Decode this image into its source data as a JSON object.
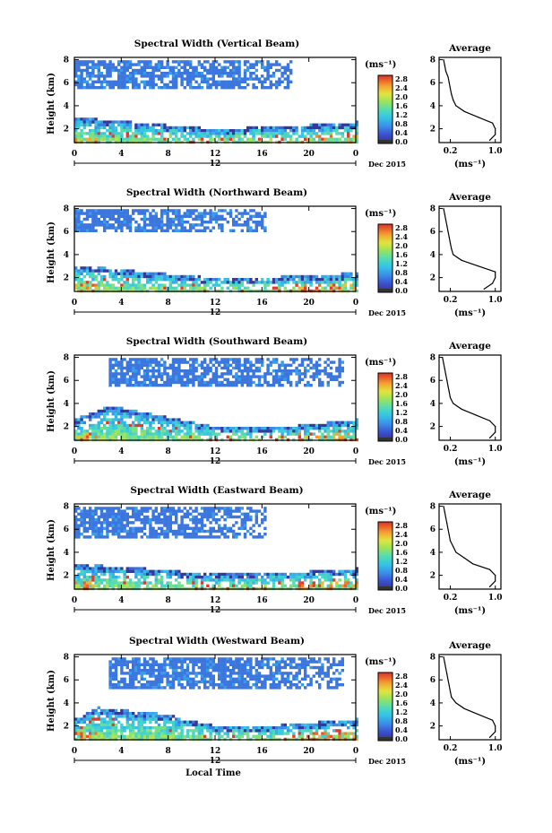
{
  "figure": {
    "x_label": "Local Time",
    "date_label": "Dec 2015",
    "x_ticks": [
      "0",
      "4",
      "8",
      "12",
      "16",
      "20",
      "0"
    ],
    "x_mid_label": "12",
    "y_label": "Height (km)",
    "y_ticks": [
      "2",
      "4",
      "6",
      "8"
    ],
    "cbar_unit": "(ms⁻¹)",
    "cbar_ticks": [
      "0.0",
      "0.4",
      "0.8",
      "1.2",
      "1.6",
      "2.0",
      "2.4",
      "2.8"
    ],
    "avg_title": "Average",
    "avg_y_ticks": [
      "2",
      "4",
      "6",
      "8"
    ],
    "avg_x_ticks": [
      "0.2",
      "1.0"
    ],
    "avg_x_unit": "(ms⁻¹)"
  },
  "chart_data": [
    {
      "type": "heatmap",
      "title": "Spectral Width (Vertical Beam)",
      "xlabel": "Local Time",
      "ylabel": "Height (km)",
      "xlim": [
        0,
        24
      ],
      "ylim": [
        0.8,
        8.2
      ],
      "colorbar": {
        "unit": "ms^-1",
        "range": [
          0,
          2.8
        ]
      },
      "upper_cloud": {
        "height_km": [
          5.5,
          8.0
        ],
        "time_h": [
          0,
          18.5
        ],
        "typical_width": 0.2
      },
      "lower_layer_top_km": [
        [
          0,
          3.0
        ],
        [
          6,
          2.5
        ],
        [
          12,
          2.0
        ],
        [
          18,
          2.2
        ],
        [
          24,
          2.6
        ]
      ],
      "average_profile": {
        "title": "Average",
        "xlim": [
          0,
          1.1
        ],
        "height_km": [
          1.0,
          1.5,
          2.0,
          2.5,
          3.0,
          3.5,
          4.0,
          4.5,
          5.0,
          5.5,
          6.0,
          6.5,
          7.0,
          7.5,
          8.0
        ],
        "width_ms": [
          0.9,
          1.0,
          1.0,
          0.95,
          0.7,
          0.45,
          0.3,
          0.25,
          0.22,
          0.2,
          0.18,
          0.16,
          0.12,
          0.1,
          0.08
        ]
      }
    },
    {
      "type": "heatmap",
      "title": "Spectral Width (Northward Beam)",
      "xlabel": "Local Time",
      "ylabel": "Height (km)",
      "xlim": [
        0,
        24
      ],
      "ylim": [
        0.8,
        8.2
      ],
      "colorbar": {
        "unit": "ms^-1",
        "range": [
          0,
          2.8
        ]
      },
      "upper_cloud": {
        "height_km": [
          6.0,
          8.0
        ],
        "time_h": [
          0,
          16.5
        ],
        "typical_width": 0.2
      },
      "lower_layer_top_km": [
        [
          0,
          3.1
        ],
        [
          6,
          2.5
        ],
        [
          12,
          2.0
        ],
        [
          18,
          2.1
        ],
        [
          24,
          2.4
        ]
      ],
      "average_profile": {
        "title": "Average",
        "xlim": [
          0,
          1.1
        ],
        "height_km": [
          1.0,
          1.5,
          2.0,
          2.5,
          3.0,
          3.5,
          4.0,
          4.5,
          5.0,
          5.5,
          6.0,
          6.5,
          7.0,
          7.5,
          8.0
        ],
        "width_ms": [
          0.8,
          0.95,
          1.0,
          1.0,
          0.7,
          0.4,
          0.25,
          0.22,
          0.2,
          0.18,
          0.16,
          0.14,
          0.12,
          0.1,
          0.08
        ]
      }
    },
    {
      "type": "heatmap",
      "title": "Spectral Width (Southward Beam)",
      "xlabel": "Local Time",
      "ylabel": "Height (km)",
      "xlim": [
        0,
        24
      ],
      "ylim": [
        0.8,
        8.2
      ],
      "colorbar": {
        "unit": "ms^-1",
        "range": [
          0,
          2.8
        ]
      },
      "upper_cloud": {
        "height_km": [
          5.5,
          8.0
        ],
        "time_h": [
          3,
          23
        ],
        "typical_width": 0.2
      },
      "lower_layer_top_km": [
        [
          0,
          2.6
        ],
        [
          3,
          3.8
        ],
        [
          6,
          3.2
        ],
        [
          12,
          2.0
        ],
        [
          18,
          2.0
        ],
        [
          24,
          2.6
        ]
      ],
      "average_profile": {
        "title": "Average",
        "xlim": [
          0,
          1.1
        ],
        "height_km": [
          1.0,
          1.5,
          2.0,
          2.5,
          3.0,
          3.5,
          4.0,
          4.5,
          5.0,
          5.5,
          6.0,
          6.5,
          7.0,
          7.5,
          8.0
        ],
        "width_ms": [
          0.9,
          1.0,
          1.0,
          0.9,
          0.65,
          0.4,
          0.25,
          0.2,
          0.18,
          0.16,
          0.14,
          0.12,
          0.1,
          0.08,
          0.06
        ]
      }
    },
    {
      "type": "heatmap",
      "title": "Spectral Width (Eastward Beam)",
      "xlabel": "Local Time",
      "ylabel": "Height (km)",
      "xlim": [
        0,
        24
      ],
      "ylim": [
        0.8,
        8.2
      ],
      "colorbar": {
        "unit": "ms^-1",
        "range": [
          0,
          2.8
        ]
      },
      "upper_cloud": {
        "height_km": [
          5.3,
          8.0
        ],
        "time_h": [
          0,
          16.5
        ],
        "typical_width": 0.2
      },
      "lower_layer_top_km": [
        [
          0,
          3.0
        ],
        [
          6,
          2.6
        ],
        [
          12,
          2.1
        ],
        [
          18,
          2.2
        ],
        [
          24,
          2.6
        ]
      ],
      "average_profile": {
        "title": "Average",
        "xlim": [
          0,
          1.1
        ],
        "height_km": [
          1.0,
          1.5,
          2.0,
          2.5,
          3.0,
          3.5,
          4.0,
          4.5,
          5.0,
          5.5,
          6.0,
          6.5,
          7.0,
          7.5,
          8.0
        ],
        "width_ms": [
          0.9,
          1.0,
          1.0,
          0.9,
          0.6,
          0.45,
          0.3,
          0.25,
          0.2,
          0.18,
          0.16,
          0.14,
          0.12,
          0.1,
          0.08
        ]
      }
    },
    {
      "type": "heatmap",
      "title": "Spectral Width (Westward Beam)",
      "xlabel": "Local Time",
      "ylabel": "Height (km)",
      "xlim": [
        0,
        24
      ],
      "ylim": [
        0.8,
        8.2
      ],
      "colorbar": {
        "unit": "ms^-1",
        "range": [
          0,
          2.8
        ]
      },
      "upper_cloud": {
        "height_km": [
          5.3,
          8.0
        ],
        "time_h": [
          3,
          23
        ],
        "typical_width": 0.2
      },
      "lower_layer_top_km": [
        [
          0,
          2.6
        ],
        [
          2,
          3.6
        ],
        [
          8,
          3.0
        ],
        [
          12,
          2.0
        ],
        [
          18,
          2.1
        ],
        [
          24,
          2.6
        ]
      ],
      "average_profile": {
        "title": "Average",
        "xlim": [
          0,
          1.1
        ],
        "height_km": [
          1.0,
          1.5,
          2.0,
          2.5,
          3.0,
          3.5,
          4.0,
          4.5,
          5.0,
          5.5,
          6.0,
          6.5,
          7.0,
          7.5,
          8.0
        ],
        "width_ms": [
          0.9,
          1.0,
          1.0,
          0.95,
          0.7,
          0.45,
          0.3,
          0.22,
          0.2,
          0.18,
          0.16,
          0.14,
          0.12,
          0.1,
          0.08
        ]
      }
    }
  ]
}
